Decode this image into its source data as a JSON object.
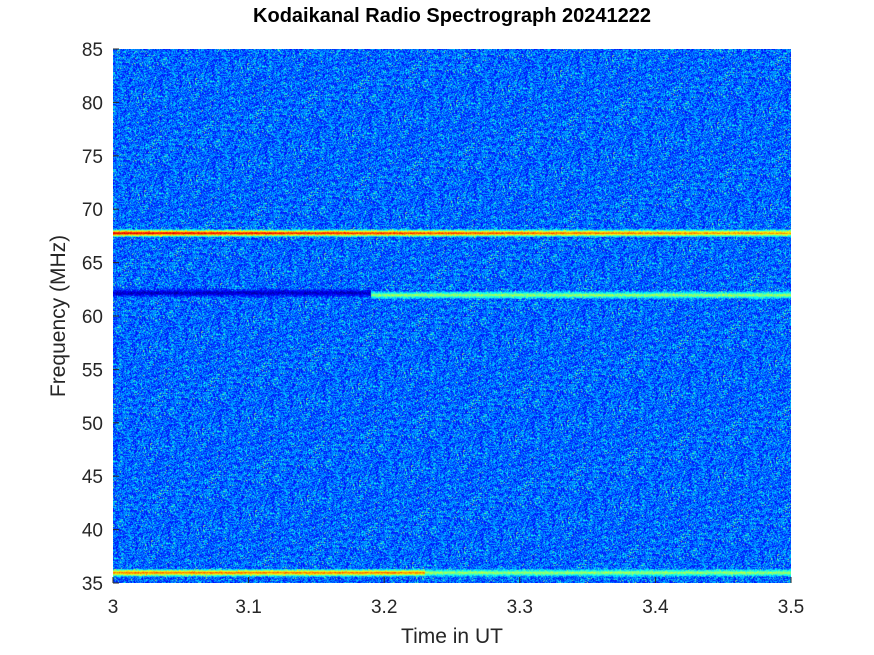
{
  "chart_data": {
    "type": "heatmap",
    "title": "Kodaikanal Radio Spectrograph  20241222",
    "xlabel": "Time in UT",
    "ylabel": "Frequency (MHz)",
    "xlim": [
      3.0,
      3.5
    ],
    "ylim": [
      35,
      85
    ],
    "x_ticks": [
      3.0,
      3.1,
      3.2,
      3.3,
      3.4,
      3.5
    ],
    "x_tick_labels": [
      "3",
      "3.1",
      "3.2",
      "3.3",
      "3.4",
      "3.5"
    ],
    "y_ticks": [
      35,
      40,
      45,
      50,
      55,
      60,
      65,
      70,
      75,
      80,
      85
    ],
    "y_tick_labels": [
      "35",
      "40",
      "45",
      "50",
      "55",
      "60",
      "65",
      "70",
      "75",
      "80",
      "85"
    ],
    "colormap": "jet",
    "grid": false,
    "features": [
      {
        "kind": "emission",
        "freq_mhz": 67.8,
        "t_start": 3.0,
        "t_end": 3.5,
        "level_start": 0.95,
        "level_end": 0.75
      },
      {
        "kind": "absorption",
        "freq_mhz": 62.2,
        "t_start": 3.0,
        "t_end": 3.19,
        "level": 0.05
      },
      {
        "kind": "emission",
        "freq_mhz": 62.0,
        "t_start": 3.19,
        "t_end": 3.5,
        "level": 0.55
      },
      {
        "kind": "emission",
        "freq_mhz": 36.0,
        "t_start": 3.0,
        "t_end": 3.23,
        "level": 0.8
      },
      {
        "kind": "emission",
        "freq_mhz": 36.0,
        "t_start": 3.23,
        "t_end": 3.5,
        "level": 0.55
      }
    ]
  }
}
